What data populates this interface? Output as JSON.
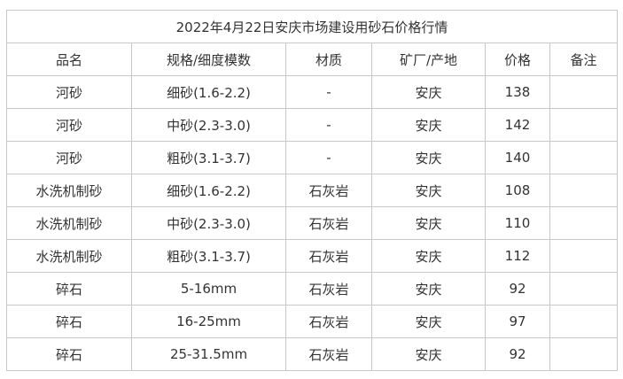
{
  "title": "2022年4月22日安庆市场建设用砂石价格行情",
  "headers": [
    "品名",
    "规格/细度模数",
    "材质",
    "矿厂/产地",
    "价格",
    "备注"
  ],
  "rows": [
    [
      "河砂",
      "细砂(1.6-2.2)",
      "-",
      "安庆",
      "138",
      ""
    ],
    [
      "河砂",
      "中砂(2.3-3.0)",
      "-",
      "安庆",
      "142",
      ""
    ],
    [
      "河砂",
      "粗砂(3.1-3.7)",
      "-",
      "安庆",
      "140",
      ""
    ],
    [
      "水洗机制砂",
      "细砂(1.6-2.2)",
      "石灰岩",
      "安庆",
      "108",
      ""
    ],
    [
      "水洗机制砂",
      "中砂(2.3-3.0)",
      "石灰岩",
      "安庆",
      "110",
      ""
    ],
    [
      "水洗机制砂",
      "粗砂(3.1-3.7)",
      "石灰岩",
      "安庆",
      "112",
      ""
    ],
    [
      "碎石",
      "5-16mm",
      "石灰岩",
      "安庆",
      "92",
      ""
    ],
    [
      "碎石",
      "16-25mm",
      "石灰岩",
      "安庆",
      "97",
      ""
    ],
    [
      "碎石",
      "25-31.5mm",
      "石灰岩",
      "安庆",
      "92",
      ""
    ]
  ]
}
